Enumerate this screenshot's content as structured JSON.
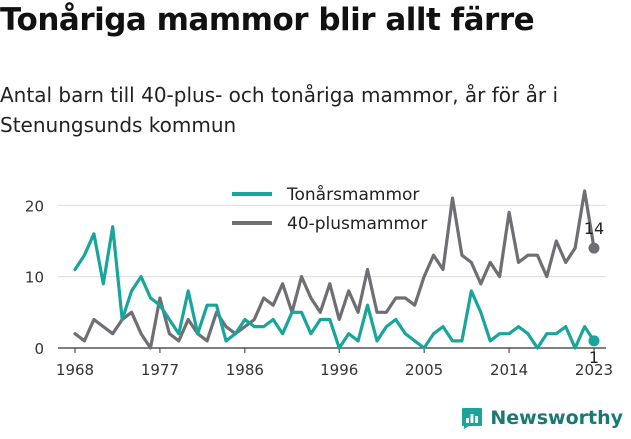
{
  "title": "Tonåriga mammor blir allt färre",
  "subtitle": "Antal barn till 40-plus- och tonåriga mammor, år för år i Stenungsunds kommun",
  "brand": "Newsworthy",
  "chart_data": {
    "type": "line",
    "title": "Tonåriga mammor blir allt färre",
    "xlabel": "",
    "ylabel": "",
    "xlim": [
      1968,
      2023
    ],
    "ylim": [
      0,
      22
    ],
    "x_ticks": [
      "1968",
      "1977",
      "1986",
      "1996",
      "2005",
      "2014",
      "2023"
    ],
    "y_ticks": [
      "0",
      "10",
      "20"
    ],
    "grid": true,
    "legend_position": "top-center",
    "x": [
      1968,
      1969,
      1970,
      1971,
      1972,
      1973,
      1974,
      1975,
      1976,
      1977,
      1978,
      1979,
      1980,
      1981,
      1982,
      1983,
      1984,
      1985,
      1986,
      1987,
      1988,
      1989,
      1990,
      1991,
      1992,
      1993,
      1994,
      1995,
      1996,
      1997,
      1998,
      1999,
      2000,
      2001,
      2002,
      2003,
      2004,
      2005,
      2006,
      2007,
      2008,
      2009,
      2010,
      2011,
      2012,
      2013,
      2014,
      2015,
      2016,
      2017,
      2018,
      2019,
      2020,
      2021,
      2022,
      2023
    ],
    "series": [
      {
        "name": "Tonårsmammor",
        "color": "#1aa59a",
        "values": [
          11,
          13,
          16,
          9,
          17,
          4,
          8,
          10,
          7,
          6,
          4,
          2,
          8,
          2,
          6,
          6,
          1,
          2,
          4,
          3,
          3,
          4,
          2,
          5,
          5,
          2,
          4,
          4,
          0,
          2,
          1,
          6,
          1,
          3,
          4,
          2,
          1,
          0,
          2,
          3,
          1,
          1,
          8,
          5,
          1,
          2,
          2,
          3,
          2,
          0,
          2,
          2,
          3,
          0,
          3,
          1
        ],
        "end_label": "1"
      },
      {
        "name": "40-plusmammor",
        "color": "#6f6f73",
        "values": [
          2,
          1,
          4,
          3,
          2,
          4,
          5,
          2,
          0,
          7,
          2,
          1,
          4,
          2,
          1,
          5,
          3,
          2,
          3,
          4,
          7,
          6,
          9,
          5,
          10,
          7,
          5,
          9,
          4,
          8,
          5,
          11,
          5,
          5,
          7,
          7,
          6,
          10,
          13,
          11,
          21,
          13,
          12,
          9,
          12,
          10,
          19,
          12,
          13,
          13,
          10,
          15,
          12,
          14,
          22,
          14
        ],
        "end_label": "14"
      }
    ]
  }
}
